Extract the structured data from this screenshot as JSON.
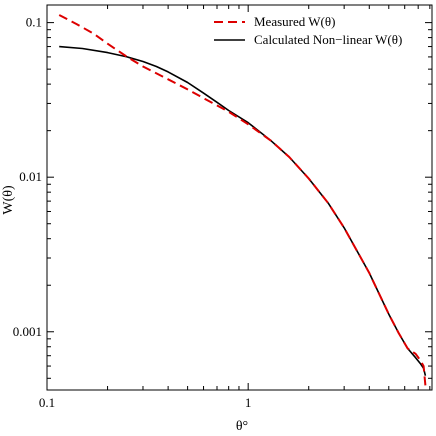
{
  "chart_data": {
    "type": "line",
    "xlabel": "θ°",
    "ylabel": "W(θ)",
    "xscale": "log",
    "yscale": "log",
    "xlim": [
      0.1,
      8.2
    ],
    "ylim": [
      0.00042,
      0.13
    ],
    "xticks": [
      {
        "value": 0.1,
        "label": "0.1"
      },
      {
        "value": 1,
        "label": "1"
      }
    ],
    "yticks": [
      {
        "value": 0.001,
        "label": "0.001"
      },
      {
        "value": 0.01,
        "label": "0.01"
      },
      {
        "value": 0.1,
        "label": "0.1"
      }
    ],
    "grid": false,
    "legend_position": "top-right",
    "series": [
      {
        "name": "Measured W(θ)",
        "color": "#dd0000",
        "style": "dashed",
        "x": [
          0.115,
          0.14,
          0.17,
          0.2,
          0.25,
          0.3,
          0.4,
          0.5,
          0.6,
          0.8,
          1.0,
          1.3,
          1.6,
          2.0,
          2.5,
          3.0,
          4.0,
          5.0,
          5.6,
          6.2,
          6.8,
          7.2,
          7.45,
          7.6
        ],
        "y": [
          0.112,
          0.098,
          0.085,
          0.073,
          0.06,
          0.052,
          0.043,
          0.037,
          0.0325,
          0.0265,
          0.022,
          0.0172,
          0.0135,
          0.0098,
          0.0068,
          0.0047,
          0.0024,
          0.0013,
          0.00098,
          0.00078,
          0.00072,
          0.00065,
          0.0006,
          0.00045
        ]
      },
      {
        "name": "Calculated Non−linear W(θ)",
        "color": "#000000",
        "style": "solid",
        "x": [
          0.115,
          0.15,
          0.2,
          0.25,
          0.3,
          0.35,
          0.4,
          0.5,
          0.6,
          0.7,
          0.8,
          1.0,
          1.3,
          1.6,
          2.0,
          2.5,
          3.0,
          4.0,
          5.0,
          5.6,
          6.2,
          6.8,
          7.2,
          7.45,
          7.6
        ],
        "y": [
          0.07,
          0.068,
          0.064,
          0.06,
          0.056,
          0.052,
          0.048,
          0.041,
          0.035,
          0.0305,
          0.027,
          0.0225,
          0.0172,
          0.0135,
          0.0098,
          0.0068,
          0.0047,
          0.0024,
          0.0013,
          0.00098,
          0.00078,
          0.00068,
          0.00062,
          0.00058,
          0.00052
        ]
      }
    ]
  }
}
